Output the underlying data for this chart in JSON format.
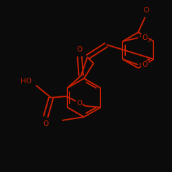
{
  "bg": "#0b0b0b",
  "bc": "#c82000",
  "lw": 1.45,
  "figsize": [
    2.5,
    2.5
  ],
  "dpi": 100,
  "xlim": [
    0,
    250
  ],
  "ylim": [
    0,
    250
  ]
}
